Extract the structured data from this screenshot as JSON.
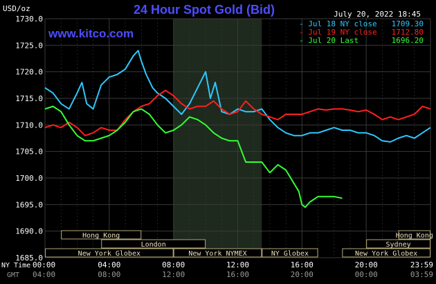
{
  "header": {
    "title": "24 Hour Spot Gold (Bid)",
    "unit": "USD/oz",
    "date": "July 20, 2022 18:45",
    "website": "www.kitco.com"
  },
  "colors": {
    "background": "#000000",
    "title": "#4d4dff",
    "website": "#4d4dff",
    "axis_text": "#ffffff",
    "grid": "#3a3a3a",
    "shade": "#1e2a1e",
    "session_fill": "#000000",
    "session_border": "#b5a97a",
    "session_text": "#e8e0c0",
    "gmt_text": "#9a9a9a"
  },
  "chart_data": {
    "type": "line",
    "title": "24 Hour Spot Gold (Bid)",
    "ylabel": "USD/oz",
    "ylim": [
      1685.0,
      1730.0
    ],
    "yticks": [
      "1730.0",
      "1725.0",
      "1720.0",
      "1715.0",
      "1710.0",
      "1705.0",
      "1700.0",
      "1695.0",
      "1690.0",
      "1685.0"
    ],
    "xlim": [
      0,
      24
    ],
    "x_ticks": [
      {
        "ny": "00:00",
        "gmt": "04:00",
        "x": 0
      },
      {
        "ny": "04:00",
        "gmt": "08:00",
        "x": 4
      },
      {
        "ny": "08:00",
        "gmt": "12:00",
        "x": 8
      },
      {
        "ny": "12:00",
        "gmt": "16:00",
        "x": 12
      },
      {
        "ny": "16:00",
        "gmt": "20:00",
        "x": 16
      },
      {
        "ny": "20:00",
        "gmt": "00:00",
        "x": 20
      },
      {
        "ny": "23:59",
        "gmt": "03:59",
        "x": 24
      }
    ],
    "x_row_labels": {
      "ny": "NY Time",
      "gmt": "GMT"
    },
    "shaded_region": [
      8,
      13.5
    ],
    "grid": true,
    "legend_position": "top-right",
    "series": [
      {
        "name": "Jul 18 NY close",
        "legend_value": "1709.30",
        "color": "#2ec8ff",
        "x": [
          0,
          0.5,
          1,
          1.5,
          2,
          2.3,
          2.6,
          3,
          3.5,
          4,
          4.5,
          5,
          5.5,
          5.8,
          6,
          6.3,
          6.7,
          7,
          7.5,
          8,
          8.5,
          9,
          9.5,
          10,
          10.3,
          10.6,
          11,
          11.5,
          12,
          12.5,
          13,
          13.5,
          14,
          14.5,
          15,
          15.5,
          16,
          16.5,
          17,
          17.5,
          18,
          18.5,
          19,
          19.5,
          20,
          20.5,
          21,
          21.5,
          22,
          22.5,
          23,
          23.5,
          24
        ],
        "values": [
          1717.0,
          1716.0,
          1714.0,
          1713.0,
          1716.0,
          1718.0,
          1714.0,
          1713.0,
          1717.5,
          1719.0,
          1719.5,
          1720.5,
          1723.0,
          1724.0,
          1722.0,
          1719.5,
          1717.0,
          1716.0,
          1715.0,
          1713.5,
          1712.0,
          1714.0,
          1717.0,
          1720.0,
          1715.0,
          1718.0,
          1712.5,
          1712.0,
          1713.0,
          1712.5,
          1712.5,
          1713.0,
          1711.0,
          1709.5,
          1708.5,
          1708.0,
          1708.0,
          1708.5,
          1708.5,
          1709.0,
          1709.5,
          1709.0,
          1709.0,
          1708.5,
          1708.5,
          1708.0,
          1707.0,
          1706.8,
          1707.5,
          1708.0,
          1707.5,
          1708.5,
          1709.5
        ]
      },
      {
        "name": "Jul 19 NY close",
        "legend_value": "1712.80",
        "color": "#ff2020",
        "x": [
          0,
          0.5,
          1,
          1.5,
          2,
          2.5,
          3,
          3.5,
          4,
          4.5,
          5,
          5.5,
          6,
          6.5,
          7,
          7.5,
          8,
          8.5,
          9,
          9.5,
          10,
          10.5,
          11,
          11.5,
          12,
          12.5,
          13,
          13.5,
          14,
          14.5,
          15,
          15.5,
          16,
          16.5,
          17,
          17.5,
          18,
          18.5,
          19,
          19.5,
          20,
          20.5,
          21,
          21.5,
          22,
          22.5,
          23,
          23.5,
          24
        ],
        "values": [
          1709.5,
          1710.0,
          1709.5,
          1710.5,
          1709.5,
          1708.0,
          1708.5,
          1709.5,
          1709.0,
          1709.0,
          1711.0,
          1712.5,
          1713.5,
          1714.0,
          1715.5,
          1716.5,
          1715.5,
          1714.0,
          1713.0,
          1713.5,
          1713.5,
          1714.5,
          1713.0,
          1712.0,
          1712.5,
          1714.5,
          1713.0,
          1712.0,
          1711.5,
          1711.0,
          1712.0,
          1712.0,
          1712.0,
          1712.5,
          1713.0,
          1712.8,
          1713.0,
          1713.0,
          1712.8,
          1712.5,
          1712.8,
          1712.0,
          1711.0,
          1711.5,
          1711.0,
          1711.5,
          1712.0,
          1713.5,
          1713.0
        ]
      },
      {
        "name": "Jul 20 Last",
        "legend_value": "1696.20",
        "color": "#33ff33",
        "x": [
          0,
          0.5,
          1,
          1.5,
          2,
          2.5,
          3,
          3.5,
          4,
          4.5,
          5,
          5.5,
          6,
          6.5,
          7,
          7.5,
          8,
          8.5,
          9,
          9.5,
          10,
          10.5,
          11,
          11.5,
          12,
          12.5,
          13,
          13.5,
          14,
          14.5,
          15,
          15.5,
          15.8,
          16,
          16.2,
          16.5,
          17,
          17.5,
          18,
          18.5
        ],
        "values": [
          1713.0,
          1713.5,
          1712.5,
          1710.0,
          1708.0,
          1707.0,
          1707.0,
          1707.5,
          1708.0,
          1709.0,
          1710.5,
          1712.5,
          1713.0,
          1712.0,
          1710.0,
          1708.5,
          1709.0,
          1710.0,
          1711.5,
          1711.0,
          1710.0,
          1708.5,
          1707.5,
          1707.0,
          1707.0,
          1703.0,
          1703.0,
          1703.0,
          1701.0,
          1702.5,
          1701.5,
          1699.0,
          1697.5,
          1695.0,
          1694.5,
          1695.5,
          1696.5,
          1696.5,
          1696.5,
          1696.2
        ]
      }
    ]
  },
  "sessions": [
    {
      "label": "Hong Kong",
      "x0": 1.0,
      "x1": 6.0,
      "row": 0
    },
    {
      "label": "Hong Kong",
      "x0": 22.0,
      "x1": 24.0,
      "row": 0
    },
    {
      "label": "London",
      "x0": 3.5,
      "x1": 10.0,
      "row": 1
    },
    {
      "label": "Sydney",
      "x0": 20.0,
      "x1": 24.0,
      "row": 1
    },
    {
      "label": "New York Globex",
      "x0": 0.0,
      "x1": 8.0,
      "row": 2
    },
    {
      "label": "New York NYMEX",
      "x0": 8.0,
      "x1": 13.5,
      "row": 2
    },
    {
      "label": "NY Globex",
      "x0": 13.5,
      "x1": 17.0,
      "row": 2
    },
    {
      "label": "New York Globex",
      "x0": 18.5,
      "x1": 24.0,
      "row": 2
    }
  ]
}
